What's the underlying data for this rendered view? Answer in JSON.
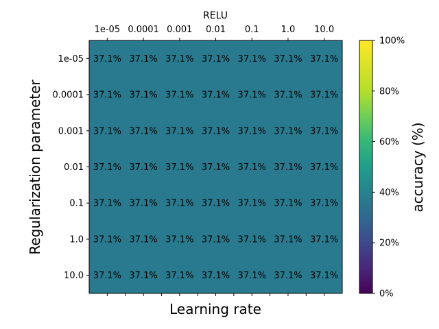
{
  "chart_data": {
    "type": "heatmap",
    "title": "RELU",
    "xlabel": "Learning rate",
    "ylabel": "Regularization parameter",
    "x_categories": [
      "1e-05",
      "0.0001",
      "0.001",
      "0.01",
      "0.1",
      "1.0",
      "10.0"
    ],
    "y_categories": [
      "1e-05",
      "0.0001",
      "0.001",
      "0.01",
      "0.1",
      "1.0",
      "10.0"
    ],
    "values": [
      [
        37.1,
        37.1,
        37.1,
        37.1,
        37.1,
        37.1,
        37.1
      ],
      [
        37.1,
        37.1,
        37.1,
        37.1,
        37.1,
        37.1,
        37.1
      ],
      [
        37.1,
        37.1,
        37.1,
        37.1,
        37.1,
        37.1,
        37.1
      ],
      [
        37.1,
        37.1,
        37.1,
        37.1,
        37.1,
        37.1,
        37.1
      ],
      [
        37.1,
        37.1,
        37.1,
        37.1,
        37.1,
        37.1,
        37.1
      ],
      [
        37.1,
        37.1,
        37.1,
        37.1,
        37.1,
        37.1,
        37.1
      ],
      [
        37.1,
        37.1,
        37.1,
        37.1,
        37.1,
        37.1,
        37.1
      ]
    ],
    "cell_labels": [
      [
        "37.1%",
        "37.1%",
        "37.1%",
        "37.1%",
        "37.1%",
        "37.1%",
        "37.1%"
      ],
      [
        "37.1%",
        "37.1%",
        "37.1%",
        "37.1%",
        "37.1%",
        "37.1%",
        "37.1%"
      ],
      [
        "37.1%",
        "37.1%",
        "37.1%",
        "37.1%",
        "37.1%",
        "37.1%",
        "37.1%"
      ],
      [
        "37.1%",
        "37.1%",
        "37.1%",
        "37.1%",
        "37.1%",
        "37.1%",
        "37.1%"
      ],
      [
        "37.1%",
        "37.1%",
        "37.1%",
        "37.1%",
        "37.1%",
        "37.1%",
        "37.1%"
      ],
      [
        "37.1%",
        "37.1%",
        "37.1%",
        "37.1%",
        "37.1%",
        "37.1%",
        "37.1%"
      ],
      [
        "37.1%",
        "37.1%",
        "37.1%",
        "37.1%",
        "37.1%",
        "37.1%",
        "37.1%"
      ]
    ],
    "colorbar": {
      "label": "accuracy (%)",
      "range": [
        0,
        100
      ],
      "ticks": [
        0,
        20,
        40,
        60,
        80,
        100
      ],
      "tick_labels": [
        "0%",
        "20%",
        "40%",
        "60%",
        "80%",
        "100%"
      ],
      "colormap": "viridis"
    },
    "x_tick_position": "top",
    "grid": false
  }
}
